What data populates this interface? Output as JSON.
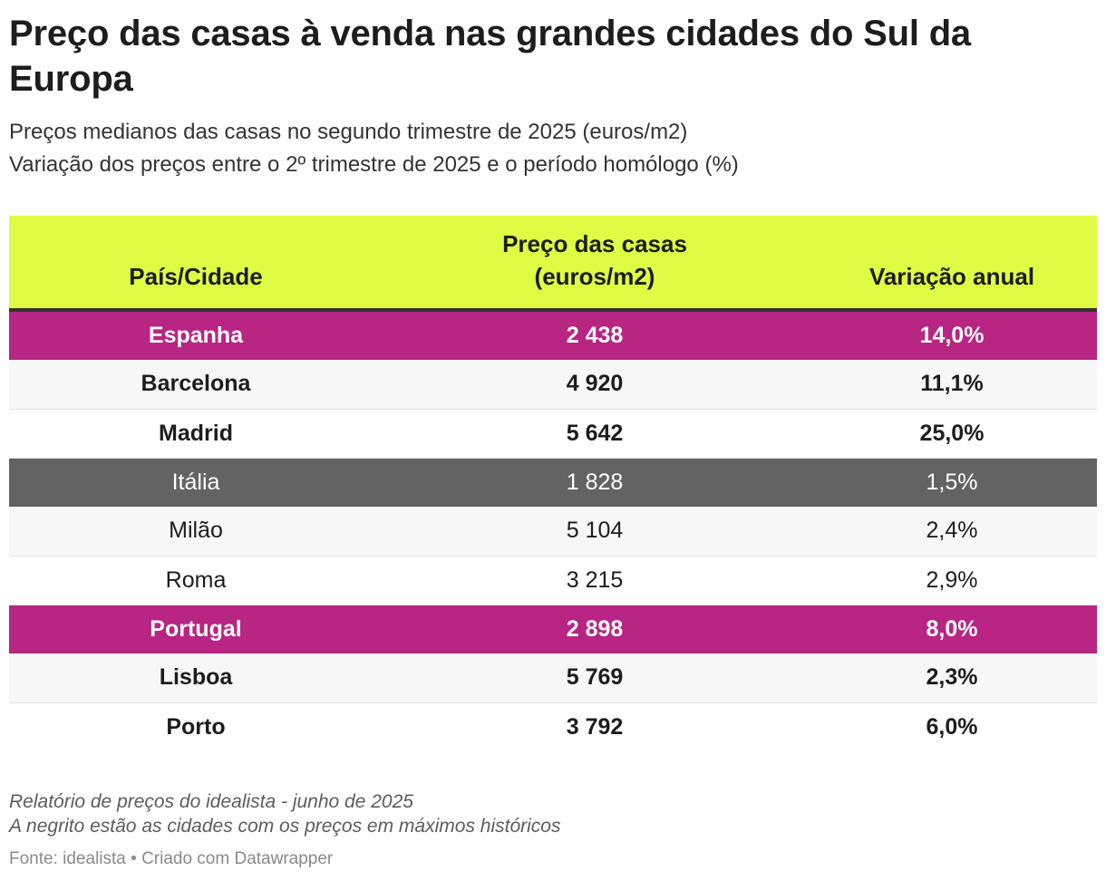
{
  "title": "Preço das casas à venda nas grandes cidades do Sul da Europa",
  "subtitle_line1": "Preços medianos das casas no segundo trimestre de 2025 (euros/m2)",
  "subtitle_line2": "Variação dos preços entre o 2º trimestre de 2025 e o período homólogo (%)",
  "colors": {
    "header_bg": "#e0fb44",
    "country_highlight": "#b82583",
    "country_gray": "#636363",
    "alt_row": "#f7f7f7",
    "text_dark": "#1d1d1d",
    "text_white": "#ffffff"
  },
  "chart_data": {
    "type": "table",
    "columns": [
      {
        "key": "place",
        "label_lines": [
          "País/Cidade"
        ]
      },
      {
        "key": "price",
        "label_lines": [
          "Preço das casas",
          "(euros/m2)"
        ]
      },
      {
        "key": "change",
        "label_lines": [
          "Variação anual"
        ]
      }
    ],
    "rows": [
      {
        "place": "Espanha",
        "price": "2 438",
        "change": "14,0%",
        "kind": "country",
        "color": "#b82583",
        "bold": true
      },
      {
        "place": "Barcelona",
        "price": "4 920",
        "change": "11,1%",
        "kind": "city",
        "bold": true
      },
      {
        "place": "Madrid",
        "price": "5 642",
        "change": "25,0%",
        "kind": "city",
        "bold": true
      },
      {
        "place": "Itália",
        "price": "1 828",
        "change": "1,5%",
        "kind": "country",
        "color": "#636363",
        "bold": false
      },
      {
        "place": "Milão",
        "price": "5 104",
        "change": "2,4%",
        "kind": "city",
        "bold": false
      },
      {
        "place": "Roma",
        "price": "3 215",
        "change": "2,9%",
        "kind": "city",
        "bold": false
      },
      {
        "place": "Portugal",
        "price": "2 898",
        "change": "8,0%",
        "kind": "country",
        "color": "#b82583",
        "bold": true
      },
      {
        "place": "Lisboa",
        "price": "5 769",
        "change": "2,3%",
        "kind": "city",
        "bold": true
      },
      {
        "place": "Porto",
        "price": "3 792",
        "change": "6,0%",
        "kind": "city",
        "bold": true
      }
    ]
  },
  "notes": {
    "line1": "Relatório de preços do idealista - junho de 2025",
    "line2": "A negrito estão as cidades com os preços em máximos históricos"
  },
  "source": "Fonte: idealista • Criado com Datawrapper"
}
